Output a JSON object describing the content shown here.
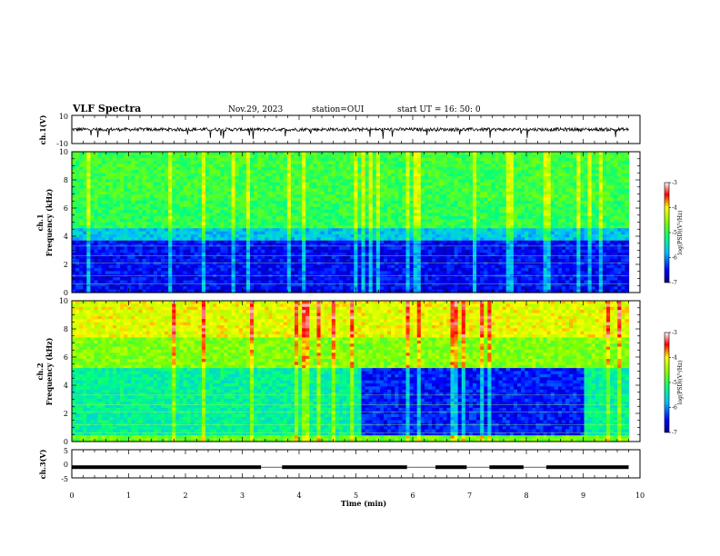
{
  "header": {
    "title": "VLF Spectra",
    "date": "Nov.29, 2023",
    "station": "station=OUI",
    "start": "start  UT =   16: 50: 0"
  },
  "chart_data": [
    {
      "type": "line",
      "id": "ch1",
      "ylabel": "ch.1(V)",
      "ylim": [
        -10,
        10
      ],
      "y_ticks": [
        "10",
        "-10"
      ],
      "xlim": [
        0,
        10
      ],
      "x": [
        0,
        9.8
      ],
      "description_band": [
        -1.2,
        1.2
      ]
    },
    {
      "type": "heatmap",
      "id": "ch1-spectrogram",
      "ylabel": "ch.1\nFrequency (kHz)",
      "ylabel_lines": [
        "ch.1",
        "Frequency (kHz)"
      ],
      "ylim": [
        0,
        10
      ],
      "y_ticks": [
        "0",
        "2",
        "4",
        "6",
        "8",
        "10"
      ],
      "xlim": [
        0,
        10
      ],
      "data_xmax": 9.8,
      "colorbar": {
        "label": "log(PSD)(V²/Hz)",
        "ticks": [
          "-3",
          "-4",
          "-5",
          "-6",
          "-7"
        ],
        "range": [
          -7,
          -3
        ]
      }
    },
    {
      "type": "heatmap",
      "id": "ch2-spectrogram",
      "ylabel_lines": [
        "ch.2",
        "Frequency (kHz)"
      ],
      "ylim": [
        0,
        10
      ],
      "y_ticks": [
        "0",
        "2",
        "4",
        "6",
        "8",
        "10"
      ],
      "xlim": [
        0,
        10
      ],
      "data_xmax": 9.8,
      "colorbar": {
        "label": "log(PSD)(V²/Hz)",
        "ticks": [
          "-3",
          "-4",
          "-5",
          "-6",
          "-7"
        ],
        "range": [
          -7,
          -3
        ]
      }
    },
    {
      "type": "line",
      "id": "ch3",
      "ylabel": "ch.3(V)",
      "ylim": [
        -5,
        5
      ],
      "y_ticks": [
        "5",
        "0",
        "-5"
      ],
      "xlim": [
        0,
        10
      ],
      "baseline": -1.2,
      "gaps": [
        [
          3.33,
          3.7
        ],
        [
          5.9,
          6.4
        ],
        [
          6.95,
          7.35
        ],
        [
          7.95,
          8.35
        ]
      ],
      "xlabel": "Time (min)",
      "x_ticks": [
        "0",
        "1",
        "2",
        "3",
        "4",
        "5",
        "6",
        "7",
        "8",
        "9",
        "10"
      ]
    }
  ]
}
